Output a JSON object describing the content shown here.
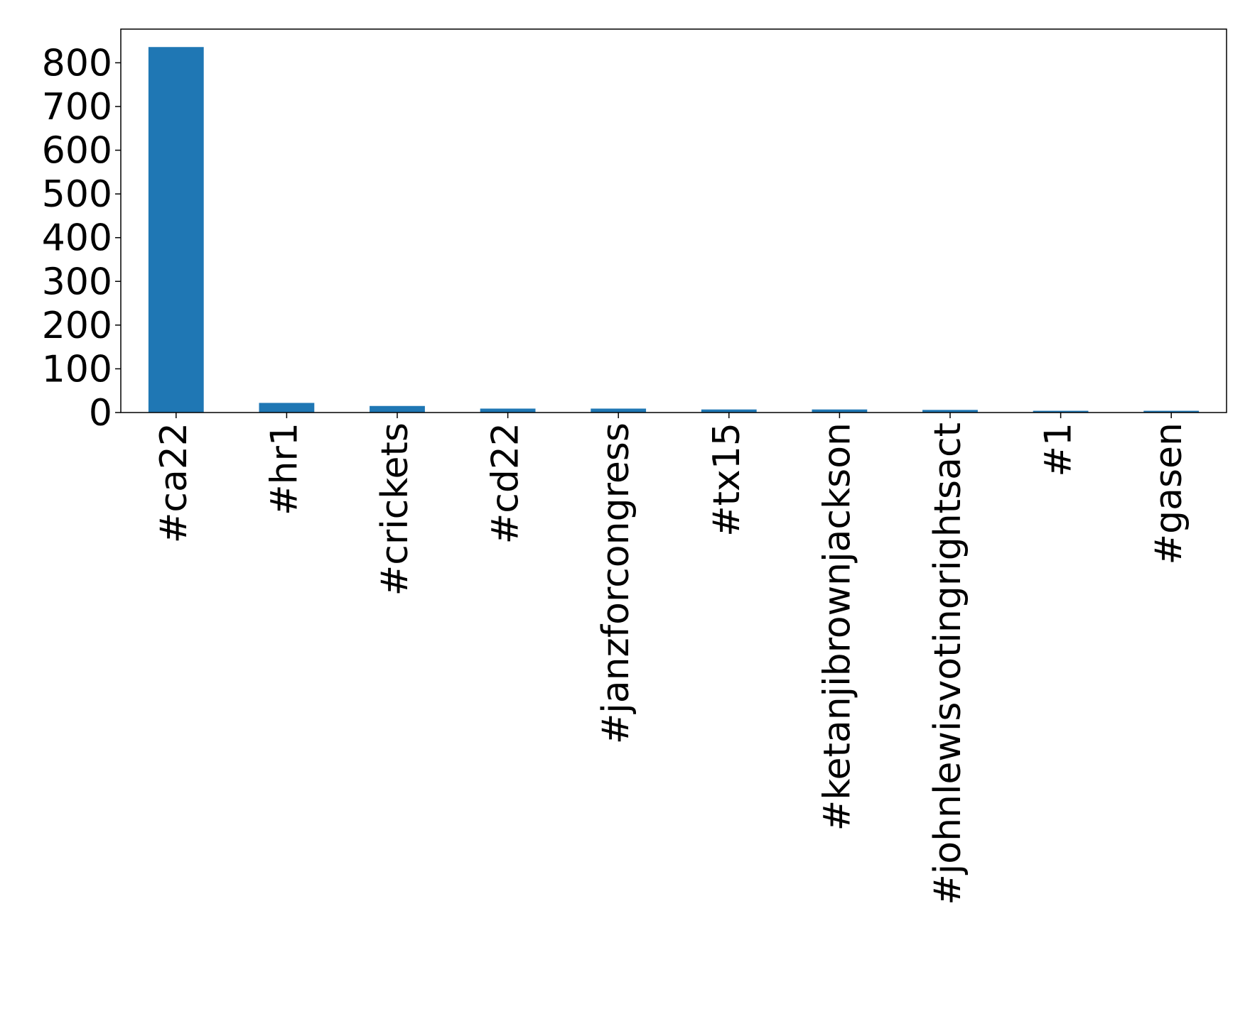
{
  "chart_data": {
    "type": "bar",
    "categories": [
      "#ca22",
      "#hr1",
      "#crickets",
      "#cd22",
      "#janzforcongress",
      "#tx15",
      "#ketanjibrownjackson",
      "#johnlewisvotingrightsact",
      "#1",
      "#gasen"
    ],
    "values": [
      836,
      22,
      15,
      9,
      9,
      7,
      7,
      6,
      4,
      4
    ],
    "color": "#1f77b4",
    "ylim": [
      0,
      877
    ],
    "yticks": [
      0,
      100,
      200,
      300,
      400,
      500,
      600,
      700,
      800
    ],
    "grid": false
  }
}
